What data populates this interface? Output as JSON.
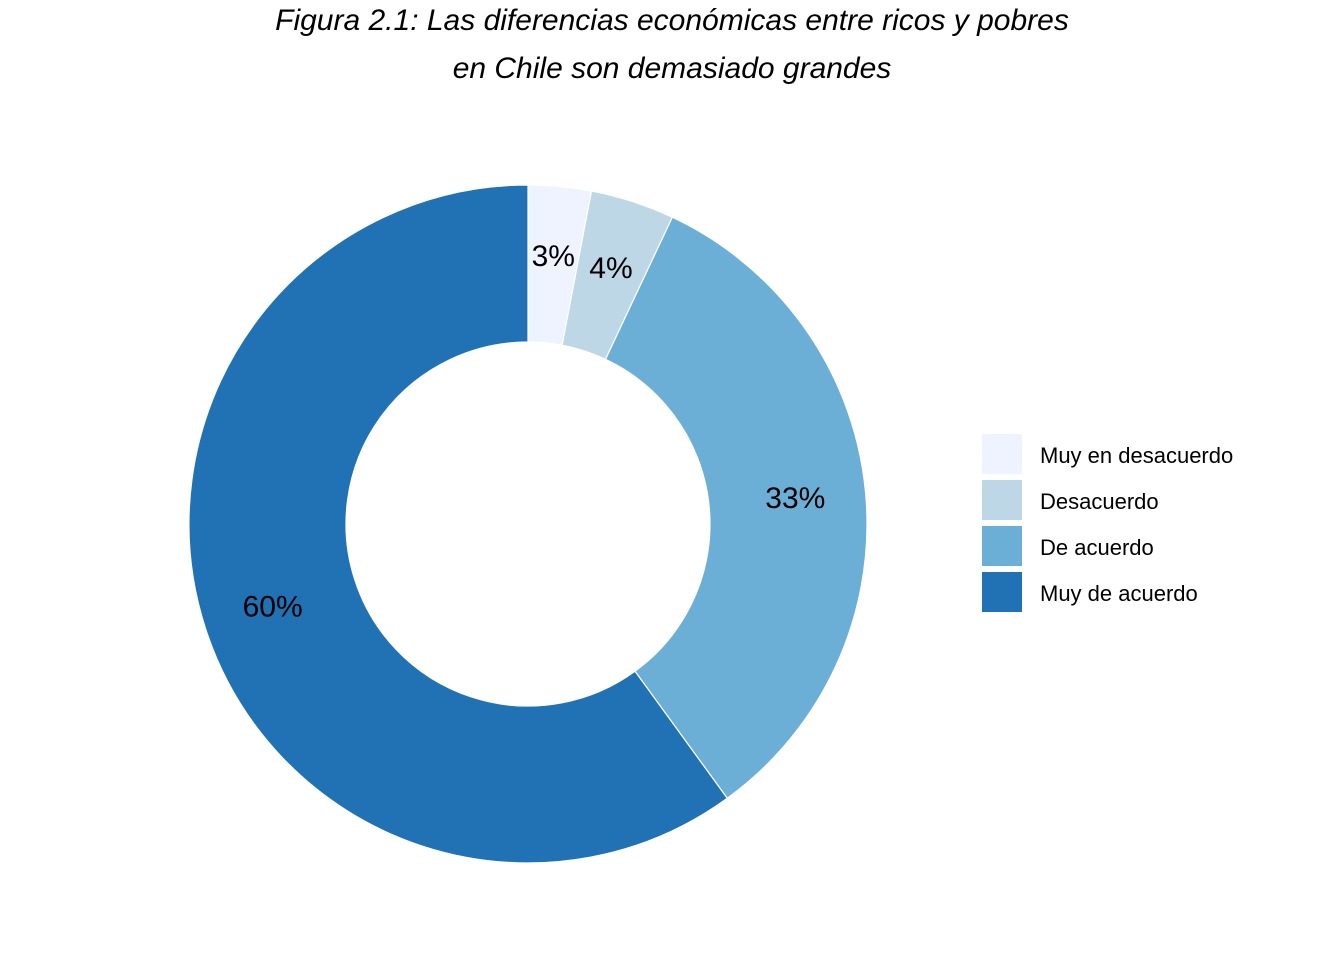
{
  "chart_data": {
    "type": "pie",
    "variant": "donut",
    "title_lines": [
      "Figura 2.1: Las diferencias económicas entre ricos y pobres",
      "en Chile son demasiado grandes"
    ],
    "slices": [
      {
        "name": "Muy en desacuerdo",
        "value": 3,
        "label": "3%",
        "color": "#eff3ff"
      },
      {
        "name": "Desacuerdo",
        "value": 4,
        "label": "4%",
        "color": "#bdd7e7"
      },
      {
        "name": "De acuerdo",
        "value": 33,
        "label": "33%",
        "color": "#6baed6"
      },
      {
        "name": "Muy de acuerdo",
        "value": 60,
        "label": "60%",
        "color": "#2171b5"
      }
    ],
    "legend": {
      "position": "right",
      "entries": [
        "Muy en desacuerdo",
        "Desacuerdo",
        "De acuerdo",
        "Muy de acuerdo"
      ]
    }
  }
}
